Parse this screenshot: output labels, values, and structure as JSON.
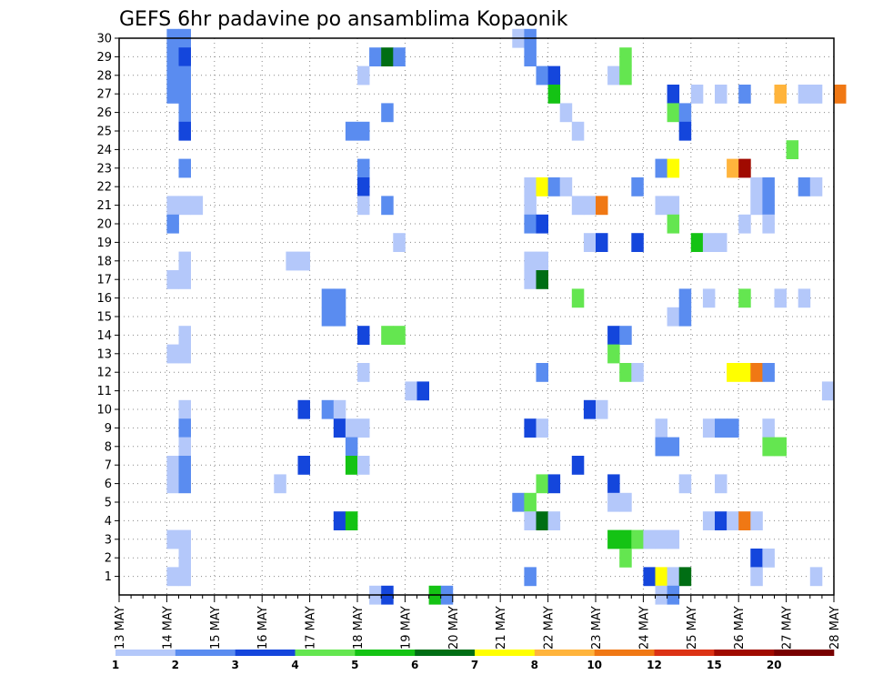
{
  "chart_data": {
    "type": "heatmap",
    "title": "GEFS 6hr padavine po ansamblima Kopaonik",
    "xlabel": "",
    "ylabel": "",
    "x_ticks": [
      "13 MAY",
      "14 MAY",
      "15 MAY",
      "16 MAY",
      "17 MAY",
      "18 MAY",
      "19 MAY",
      "20 MAY",
      "21 MAY",
      "22 MAY",
      "23 MAY",
      "24 MAY",
      "25 MAY",
      "26 MAY",
      "27 MAY",
      "28 MAY"
    ],
    "x_range": [
      0,
      60
    ],
    "y_ticks": [
      1,
      2,
      3,
      4,
      5,
      6,
      7,
      8,
      9,
      10,
      11,
      12,
      13,
      14,
      15,
      16,
      17,
      18,
      19,
      20,
      21,
      22,
      23,
      24,
      25,
      26,
      27,
      28,
      29,
      30
    ],
    "y_range": [
      0,
      30
    ],
    "grid": true,
    "colorbar": {
      "labels": [
        "1",
        "2",
        "3",
        "4",
        "5",
        "6",
        "7",
        "8",
        "10",
        "12",
        "15",
        "20"
      ],
      "colors": [
        "#b4c8fa",
        "#5a8cf0",
        "#1446dc",
        "#64e650",
        "#14c314",
        "#006e14",
        "#ffff00",
        "#ffb43c",
        "#f07814",
        "#dc3214",
        "#a00a00",
        "#780000"
      ]
    },
    "cells": [
      [
        4,
        30,
        1
      ],
      [
        5,
        30,
        1
      ],
      [
        4,
        29,
        1
      ],
      [
        5,
        29,
        2
      ],
      [
        4,
        28,
        1
      ],
      [
        5,
        28,
        1
      ],
      [
        4,
        27,
        1
      ],
      [
        5,
        27,
        1
      ],
      [
        5,
        26,
        1
      ],
      [
        5,
        25,
        2
      ],
      [
        5,
        23,
        1
      ],
      [
        4,
        21,
        0
      ],
      [
        5,
        21,
        0
      ],
      [
        6,
        21,
        0
      ],
      [
        4,
        20,
        1
      ],
      [
        5,
        18,
        0
      ],
      [
        4,
        17,
        0
      ],
      [
        5,
        17,
        0
      ],
      [
        5,
        14,
        0
      ],
      [
        4,
        13,
        0
      ],
      [
        5,
        13,
        0
      ],
      [
        5,
        10,
        0
      ],
      [
        5,
        9,
        1
      ],
      [
        5,
        8,
        0
      ],
      [
        4,
        7,
        0
      ],
      [
        5,
        7,
        1
      ],
      [
        4,
        6,
        0
      ],
      [
        5,
        6,
        1
      ],
      [
        4,
        3,
        0
      ],
      [
        5,
        3,
        0
      ],
      [
        5,
        2,
        0
      ],
      [
        4,
        1,
        0
      ],
      [
        5,
        1,
        0
      ],
      [
        21,
        29,
        1
      ],
      [
        22,
        29,
        5
      ],
      [
        23,
        29,
        1
      ],
      [
        20,
        28,
        0
      ],
      [
        22,
        26,
        1
      ],
      [
        19,
        25,
        1
      ],
      [
        20,
        25,
        1
      ],
      [
        20,
        23,
        1
      ],
      [
        20,
        22,
        2
      ],
      [
        20,
        21,
        0
      ],
      [
        22,
        21,
        1
      ],
      [
        23,
        19,
        0
      ],
      [
        14,
        18,
        0
      ],
      [
        15,
        18,
        0
      ],
      [
        17,
        16,
        1
      ],
      [
        18,
        16,
        1
      ],
      [
        17,
        15,
        1
      ],
      [
        18,
        15,
        1
      ],
      [
        20,
        14,
        2
      ],
      [
        22,
        14,
        3
      ],
      [
        23,
        14,
        3
      ],
      [
        20,
        12,
        0
      ],
      [
        24,
        11,
        0
      ],
      [
        25,
        11,
        2
      ],
      [
        15,
        10,
        2
      ],
      [
        17,
        10,
        1
      ],
      [
        18,
        10,
        0
      ],
      [
        18,
        9,
        2
      ],
      [
        19,
        9,
        0
      ],
      [
        20,
        9,
        0
      ],
      [
        19,
        8,
        1
      ],
      [
        15,
        7,
        2
      ],
      [
        19,
        7,
        4
      ],
      [
        20,
        7,
        0
      ],
      [
        13,
        6,
        0
      ],
      [
        18,
        4,
        2
      ],
      [
        19,
        4,
        4
      ],
      [
        21,
        0,
        0
      ],
      [
        22,
        0,
        2
      ],
      [
        26,
        0,
        4
      ],
      [
        27,
        0,
        1
      ],
      [
        33,
        30,
        0
      ],
      [
        34,
        30,
        1
      ],
      [
        34,
        29,
        1
      ],
      [
        35,
        28,
        1
      ],
      [
        36,
        28,
        2
      ],
      [
        36,
        27,
        4
      ],
      [
        37,
        26,
        0
      ],
      [
        38,
        25,
        0
      ],
      [
        34,
        22,
        0
      ],
      [
        35,
        22,
        6
      ],
      [
        36,
        22,
        1
      ],
      [
        37,
        22,
        0
      ],
      [
        34,
        21,
        0
      ],
      [
        38,
        21,
        0
      ],
      [
        39,
        21,
        0
      ],
      [
        40,
        21,
        8
      ],
      [
        34,
        20,
        1
      ],
      [
        35,
        20,
        2
      ],
      [
        39,
        19,
        0
      ],
      [
        40,
        19,
        2
      ],
      [
        34,
        18,
        0
      ],
      [
        35,
        18,
        0
      ],
      [
        34,
        17,
        0
      ],
      [
        35,
        17,
        5
      ],
      [
        38,
        16,
        3
      ],
      [
        35,
        12,
        1
      ],
      [
        34,
        9,
        2
      ],
      [
        35,
        9,
        0
      ],
      [
        39,
        10,
        2
      ],
      [
        40,
        10,
        0
      ],
      [
        38,
        7,
        2
      ],
      [
        35,
        6,
        3
      ],
      [
        36,
        6,
        2
      ],
      [
        33,
        5,
        1
      ],
      [
        34,
        5,
        3
      ],
      [
        34,
        4,
        0
      ],
      [
        35,
        4,
        5
      ],
      [
        36,
        4,
        0
      ],
      [
        34,
        1,
        1
      ],
      [
        42,
        29,
        3
      ],
      [
        41,
        28,
        0
      ],
      [
        42,
        28,
        3
      ],
      [
        43,
        22,
        1
      ],
      [
        43,
        19,
        2
      ],
      [
        41,
        14,
        2
      ],
      [
        42,
        14,
        1
      ],
      [
        41,
        13,
        3
      ],
      [
        42,
        12,
        3
      ],
      [
        43,
        12,
        0
      ],
      [
        41,
        6,
        2
      ],
      [
        41,
        5,
        0
      ],
      [
        42,
        5,
        0
      ],
      [
        41,
        3,
        4
      ],
      [
        42,
        3,
        4
      ],
      [
        43,
        3,
        3
      ],
      [
        44,
        3,
        0
      ],
      [
        45,
        3,
        0
      ],
      [
        46,
        3,
        0
      ],
      [
        42,
        2,
        3
      ],
      [
        44,
        1,
        2
      ],
      [
        45,
        1,
        6
      ],
      [
        46,
        1,
        0
      ],
      [
        47,
        1,
        5
      ],
      [
        45,
        0,
        0
      ],
      [
        46,
        0,
        1
      ],
      [
        46,
        27,
        2
      ],
      [
        48,
        27,
        0
      ],
      [
        50,
        27,
        0
      ],
      [
        52,
        27,
        1
      ],
      [
        55,
        27,
        7
      ],
      [
        57,
        27,
        0
      ],
      [
        58,
        27,
        0
      ],
      [
        60,
        27,
        8
      ],
      [
        46,
        26,
        3
      ],
      [
        47,
        26,
        1
      ],
      [
        47,
        25,
        2
      ],
      [
        45,
        23,
        1
      ],
      [
        46,
        23,
        6
      ],
      [
        51,
        23,
        7
      ],
      [
        52,
        23,
        10
      ],
      [
        56,
        24,
        3
      ],
      [
        53,
        22,
        0
      ],
      [
        54,
        22,
        1
      ],
      [
        57,
        22,
        1
      ],
      [
        58,
        22,
        0
      ],
      [
        53,
        21,
        0
      ],
      [
        54,
        21,
        1
      ],
      [
        45,
        21,
        0
      ],
      [
        46,
        21,
        0
      ],
      [
        46,
        20,
        3
      ],
      [
        52,
        20,
        0
      ],
      [
        54,
        20,
        0
      ],
      [
        48,
        19,
        4
      ],
      [
        49,
        19,
        0
      ],
      [
        50,
        19,
        0
      ],
      [
        47,
        16,
        1
      ],
      [
        49,
        16,
        0
      ],
      [
        52,
        16,
        3
      ],
      [
        55,
        16,
        0
      ],
      [
        57,
        16,
        0
      ],
      [
        46,
        15,
        0
      ],
      [
        47,
        15,
        1
      ],
      [
        51,
        12,
        6
      ],
      [
        52,
        12,
        6
      ],
      [
        53,
        12,
        8
      ],
      [
        54,
        12,
        1
      ],
      [
        59,
        11,
        0
      ],
      [
        45,
        9,
        0
      ],
      [
        49,
        9,
        0
      ],
      [
        50,
        9,
        1
      ],
      [
        51,
        9,
        1
      ],
      [
        54,
        9,
        0
      ],
      [
        45,
        8,
        1
      ],
      [
        46,
        8,
        1
      ],
      [
        54,
        8,
        3
      ],
      [
        55,
        8,
        3
      ],
      [
        47,
        6,
        0
      ],
      [
        50,
        6,
        0
      ],
      [
        49,
        4,
        0
      ],
      [
        50,
        4,
        2
      ],
      [
        51,
        4,
        0
      ],
      [
        52,
        4,
        8
      ],
      [
        53,
        4,
        0
      ],
      [
        53,
        2,
        2
      ],
      [
        54,
        2,
        0
      ],
      [
        53,
        1,
        0
      ],
      [
        58,
        1,
        0
      ]
    ]
  }
}
